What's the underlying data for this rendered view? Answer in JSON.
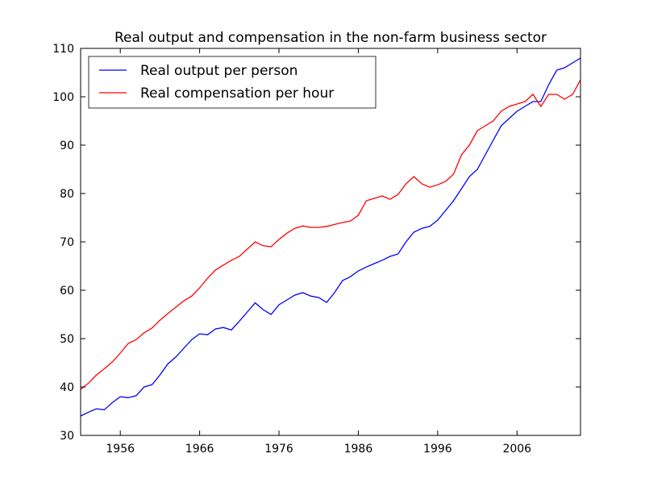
{
  "chart_data": {
    "type": "line",
    "title": "Real output and compensation in the non-farm business sector",
    "xlabel": "",
    "ylabel": "",
    "xlim": [
      1951,
      2014
    ],
    "ylim": [
      30,
      110
    ],
    "xticks": [
      1956,
      1966,
      1976,
      1986,
      1996,
      2006
    ],
    "yticks": [
      30,
      40,
      50,
      60,
      70,
      80,
      90,
      100,
      110
    ],
    "grid": false,
    "legend_position": "top-left",
    "series": [
      {
        "name": "Real output per person",
        "color": "#0000ff",
        "points": [
          [
            1951,
            34.0
          ],
          [
            1952,
            34.8
          ],
          [
            1953,
            35.5
          ],
          [
            1954,
            35.3
          ],
          [
            1955,
            36.8
          ],
          [
            1956,
            38.0
          ],
          [
            1957,
            37.8
          ],
          [
            1958,
            38.2
          ],
          [
            1959,
            40.0
          ],
          [
            1960,
            40.5
          ],
          [
            1961,
            42.5
          ],
          [
            1962,
            44.8
          ],
          [
            1963,
            46.2
          ],
          [
            1964,
            48.0
          ],
          [
            1965,
            49.8
          ],
          [
            1966,
            51.0
          ],
          [
            1967,
            50.8
          ],
          [
            1968,
            52.0
          ],
          [
            1969,
            52.3
          ],
          [
            1970,
            51.8
          ],
          [
            1971,
            53.6
          ],
          [
            1972,
            55.5
          ],
          [
            1973,
            57.4
          ],
          [
            1974,
            56.0
          ],
          [
            1975,
            55.0
          ],
          [
            1976,
            57.0
          ],
          [
            1977,
            58.0
          ],
          [
            1978,
            59.0
          ],
          [
            1979,
            59.5
          ],
          [
            1980,
            58.8
          ],
          [
            1981,
            58.5
          ],
          [
            1982,
            57.5
          ],
          [
            1983,
            59.5
          ],
          [
            1984,
            62.0
          ],
          [
            1985,
            62.8
          ],
          [
            1986,
            64.0
          ],
          [
            1987,
            64.8
          ],
          [
            1988,
            65.5
          ],
          [
            1989,
            66.2
          ],
          [
            1990,
            67.0
          ],
          [
            1991,
            67.5
          ],
          [
            1992,
            70.0
          ],
          [
            1993,
            72.0
          ],
          [
            1994,
            72.8
          ],
          [
            1995,
            73.2
          ],
          [
            1996,
            74.5
          ],
          [
            1997,
            76.5
          ],
          [
            1998,
            78.5
          ],
          [
            1999,
            81.0
          ],
          [
            2000,
            83.5
          ],
          [
            2001,
            85.0
          ],
          [
            2002,
            88.0
          ],
          [
            2003,
            91.0
          ],
          [
            2004,
            94.0
          ],
          [
            2005,
            95.5
          ],
          [
            2006,
            97.0
          ],
          [
            2007,
            98.0
          ],
          [
            2008,
            99.0
          ],
          [
            2009,
            99.0
          ],
          [
            2010,
            102.5
          ],
          [
            2011,
            105.5
          ],
          [
            2012,
            106.0
          ],
          [
            2013,
            107.0
          ],
          [
            2014,
            108.0
          ]
        ]
      },
      {
        "name": "Real compensation per hour",
        "color": "#ff0000",
        "points": [
          [
            1951,
            39.5
          ],
          [
            1952,
            40.8
          ],
          [
            1953,
            42.5
          ],
          [
            1954,
            43.8
          ],
          [
            1955,
            45.2
          ],
          [
            1956,
            47.0
          ],
          [
            1957,
            49.0
          ],
          [
            1958,
            49.8
          ],
          [
            1959,
            51.2
          ],
          [
            1960,
            52.2
          ],
          [
            1961,
            53.8
          ],
          [
            1962,
            55.2
          ],
          [
            1963,
            56.5
          ],
          [
            1964,
            57.8
          ],
          [
            1965,
            58.8
          ],
          [
            1966,
            60.5
          ],
          [
            1967,
            62.5
          ],
          [
            1968,
            64.2
          ],
          [
            1969,
            65.2
          ],
          [
            1970,
            66.2
          ],
          [
            1971,
            67.0
          ],
          [
            1972,
            68.5
          ],
          [
            1973,
            70.0
          ],
          [
            1974,
            69.2
          ],
          [
            1975,
            69.0
          ],
          [
            1976,
            70.5
          ],
          [
            1977,
            71.8
          ],
          [
            1978,
            72.8
          ],
          [
            1979,
            73.3
          ],
          [
            1980,
            73.0
          ],
          [
            1981,
            73.0
          ],
          [
            1982,
            73.2
          ],
          [
            1983,
            73.6
          ],
          [
            1984,
            74.0
          ],
          [
            1985,
            74.3
          ],
          [
            1986,
            75.5
          ],
          [
            1987,
            78.5
          ],
          [
            1988,
            79.0
          ],
          [
            1989,
            79.5
          ],
          [
            1990,
            78.8
          ],
          [
            1991,
            79.8
          ],
          [
            1992,
            82.0
          ],
          [
            1993,
            83.5
          ],
          [
            1994,
            82.0
          ],
          [
            1995,
            81.3
          ],
          [
            1996,
            81.8
          ],
          [
            1997,
            82.5
          ],
          [
            1998,
            84.0
          ],
          [
            1999,
            88.0
          ],
          [
            2000,
            90.0
          ],
          [
            2001,
            93.0
          ],
          [
            2002,
            94.0
          ],
          [
            2003,
            95.0
          ],
          [
            2004,
            97.0
          ],
          [
            2005,
            98.0
          ],
          [
            2006,
            98.5
          ],
          [
            2007,
            99.0
          ],
          [
            2008,
            100.5
          ],
          [
            2009,
            98.0
          ],
          [
            2010,
            100.5
          ],
          [
            2011,
            100.5
          ],
          [
            2012,
            99.5
          ],
          [
            2013,
            100.5
          ],
          [
            2014,
            103.5
          ]
        ]
      }
    ]
  }
}
